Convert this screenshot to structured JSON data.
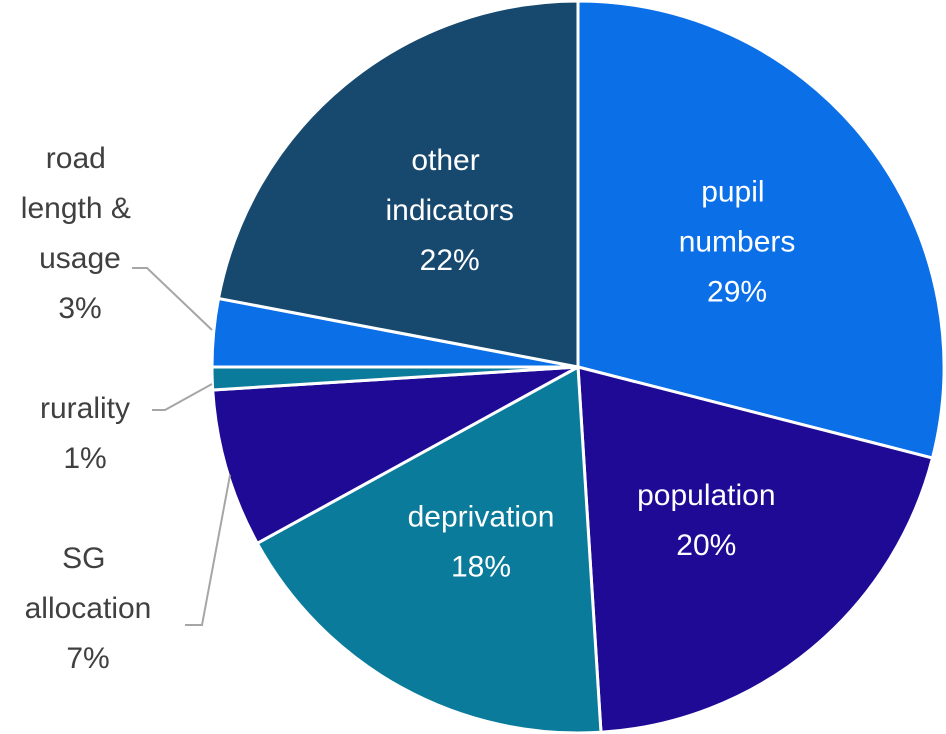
{
  "chart_data": {
    "type": "pie",
    "categories": [
      "pupil numbers",
      "population",
      "deprivation",
      "SG allocation",
      "rurality",
      "road length & usage",
      "other indicators"
    ],
    "values": [
      29,
      20,
      18,
      7,
      1,
      3,
      22
    ],
    "value_labels": [
      "29%",
      "20%",
      "18%",
      "7%",
      "1%",
      "3%",
      "22%"
    ],
    "colors": [
      "#0b6fe8",
      "#1f0a96",
      "#0a7b9a",
      "#1f0a96",
      "#0a7b9a",
      "#0b6fe8",
      "#17486e"
    ]
  }
}
